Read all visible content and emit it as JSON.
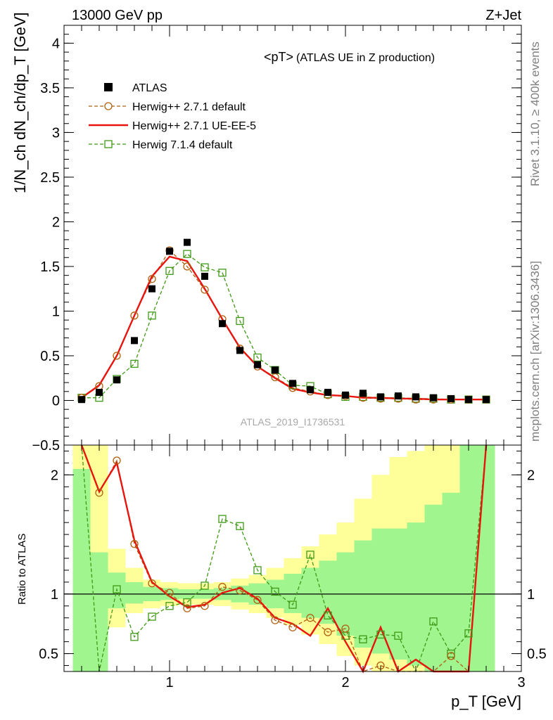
{
  "header": {
    "left": "13000 GeV pp",
    "right": "Z+Jet",
    "side_top": "Rivet 3.1.10, ≥ 400k events",
    "side_bottom": "mcplots.cern.ch [arXiv:1306.3436]"
  },
  "main_plot": {
    "title_main": "<pT>",
    "title_sub": "(ATLAS UE in Z production)",
    "watermark": "ATLAS_2019_I1736531",
    "ylabel": "1/N_ch dN_ch/dp_T [GeV]"
  },
  "ratio_plot": {
    "ylabel": "Ratio to ATLAS"
  },
  "xaxis": {
    "label": "p_T [GeV]"
  },
  "colors": {
    "data": "#000000",
    "herwig_default": "#b25f0f",
    "herwig_ue": "#e8140e",
    "herwig7": "#3f9a16",
    "band_inner": "#a0f58e",
    "band_outer": "#ffff99"
  },
  "chart_data": {
    "type": "scatter",
    "xlim": [
      0.4,
      3.0
    ],
    "ylim_main": [
      -0.5,
      4.2
    ],
    "ylim_ratio": [
      0.35,
      2.25
    ],
    "xticks": [
      1,
      2,
      3
    ],
    "xtick_labels": [
      "1",
      "2",
      "3"
    ],
    "yticks_main": [
      -0.5,
      0,
      0.5,
      1,
      1.5,
      2,
      2.5,
      3,
      3.5,
      4
    ],
    "ytick_labels_main": [
      "−0.5",
      "0",
      "0.5",
      "1",
      "1.5",
      "2",
      "2.5",
      "3",
      "3.5",
      "4"
    ],
    "yticks_ratio": [
      0.5,
      1,
      2
    ],
    "ytick_labels_ratio": [
      "0.5",
      "1",
      "2"
    ],
    "x": [
      0.5,
      0.6,
      0.7,
      0.8,
      0.9,
      1.0,
      1.1,
      1.2,
      1.3,
      1.4,
      1.5,
      1.6,
      1.7,
      1.8,
      1.9,
      2.0,
      2.1,
      2.2,
      2.3,
      2.4,
      2.5,
      2.6,
      2.7,
      2.8
    ],
    "series": [
      {
        "name": "ATLAS",
        "values": [
          0.01,
          0.09,
          0.23,
          0.67,
          1.25,
          1.67,
          1.77,
          1.39,
          0.86,
          0.56,
          0.4,
          0.34,
          0.19,
          0.12,
          0.09,
          0.06,
          0.08,
          0.04,
          0.05,
          0.04,
          0.03,
          0.02,
          0.01,
          0.01
        ]
      },
      {
        "name": "Herwig++ 2.7.1 default",
        "values": [
          0.03,
          0.16,
          0.5,
          0.95,
          1.36,
          1.68,
          1.5,
          1.24,
          0.91,
          0.58,
          0.38,
          0.26,
          0.14,
          0.1,
          0.06,
          0.05,
          0.03,
          0.02,
          0.02,
          0.01,
          0.01,
          0.01,
          0.01,
          0.01
        ],
        "ratio": [
          3.0,
          1.85,
          2.12,
          1.42,
          1.09,
          1.01,
          0.88,
          0.9,
          1.06,
          1.03,
          0.95,
          0.78,
          0.72,
          0.8,
          0.68,
          0.71,
          0.3,
          0.4,
          0.2,
          0.2,
          0.34,
          0.48,
          0.2,
          2.5
        ]
      },
      {
        "name": "Herwig++ 2.7.1 UE-EE-5",
        "values": [
          0.03,
          0.17,
          0.5,
          0.95,
          1.39,
          1.61,
          1.56,
          1.25,
          0.91,
          0.59,
          0.38,
          0.25,
          0.13,
          0.09,
          0.06,
          0.05,
          0.03,
          0.03,
          0.02,
          0.02,
          0.01,
          0.01,
          0.01,
          0.01
        ],
        "ratio": [
          3.0,
          1.86,
          2.1,
          1.45,
          1.1,
          0.98,
          0.89,
          0.91,
          1.01,
          1.05,
          0.96,
          0.8,
          0.75,
          0.65,
          0.88,
          0.6,
          0.3,
          0.72,
          0.2,
          0.45,
          0.2,
          0.2,
          0.2,
          2.3
        ]
      },
      {
        "name": "Herwig 7.1.4 default",
        "values": [
          0.03,
          0.03,
          0.24,
          0.41,
          0.95,
          1.45,
          1.64,
          1.49,
          1.43,
          0.89,
          0.48,
          0.34,
          0.17,
          0.16,
          0.07,
          0.04,
          0.04,
          0.03,
          0.03,
          0.02,
          0.02,
          0.01,
          0.01,
          0.01
        ],
        "ratio": [
          3.0,
          0.3,
          1.04,
          0.64,
          0.81,
          0.9,
          0.93,
          1.07,
          1.63,
          1.57,
          1.2,
          1.02,
          0.91,
          1.33,
          0.82,
          0.65,
          0.62,
          0.66,
          0.65,
          0.3,
          0.77,
          0.5,
          0.67,
          2.5
        ]
      }
    ],
    "band": {
      "x_edges": [
        0.45,
        0.55,
        0.65,
        0.75,
        0.85,
        0.95,
        1.05,
        1.15,
        1.25,
        1.35,
        1.45,
        1.55,
        1.65,
        1.75,
        1.85,
        1.95,
        2.05,
        2.15,
        2.25,
        2.35,
        2.45,
        2.55,
        2.65,
        2.75,
        2.85
      ],
      "inner": [
        [
          0.35,
          2.05
        ],
        [
          0.35,
          1.35
        ],
        [
          0.88,
          1.18
        ],
        [
          0.92,
          1.1
        ],
        [
          0.94,
          1.06
        ],
        [
          0.95,
          1.05
        ],
        [
          0.96,
          1.04
        ],
        [
          0.96,
          1.04
        ],
        [
          0.95,
          1.05
        ],
        [
          0.93,
          1.07
        ],
        [
          0.91,
          1.09
        ],
        [
          0.88,
          1.12
        ],
        [
          0.84,
          1.17
        ],
        [
          0.8,
          1.22
        ],
        [
          0.75,
          1.28
        ],
        [
          0.65,
          1.35
        ],
        [
          0.55,
          1.45
        ],
        [
          0.5,
          1.55
        ],
        [
          0.45,
          1.55
        ],
        [
          0.4,
          1.6
        ],
        [
          0.35,
          1.75
        ],
        [
          0.35,
          1.85
        ],
        [
          0.35,
          2.25
        ],
        [
          0.35,
          2.25
        ]
      ],
      "outer": [
        [
          0.35,
          2.25
        ],
        [
          0.35,
          2.25
        ],
        [
          0.72,
          1.38
        ],
        [
          0.84,
          1.22
        ],
        [
          0.88,
          1.12
        ],
        [
          0.9,
          1.1
        ],
        [
          0.91,
          1.09
        ],
        [
          0.91,
          1.09
        ],
        [
          0.9,
          1.1
        ],
        [
          0.87,
          1.13
        ],
        [
          0.84,
          1.16
        ],
        [
          0.8,
          1.22
        ],
        [
          0.74,
          1.3
        ],
        [
          0.66,
          1.4
        ],
        [
          0.58,
          1.5
        ],
        [
          0.48,
          1.6
        ],
        [
          0.4,
          1.8
        ],
        [
          0.35,
          2.0
        ],
        [
          0.35,
          2.15
        ],
        [
          0.35,
          2.2
        ],
        [
          0.35,
          2.25
        ],
        [
          0.35,
          2.25
        ],
        [
          0.35,
          2.25
        ],
        [
          0.35,
          2.25
        ]
      ]
    }
  }
}
